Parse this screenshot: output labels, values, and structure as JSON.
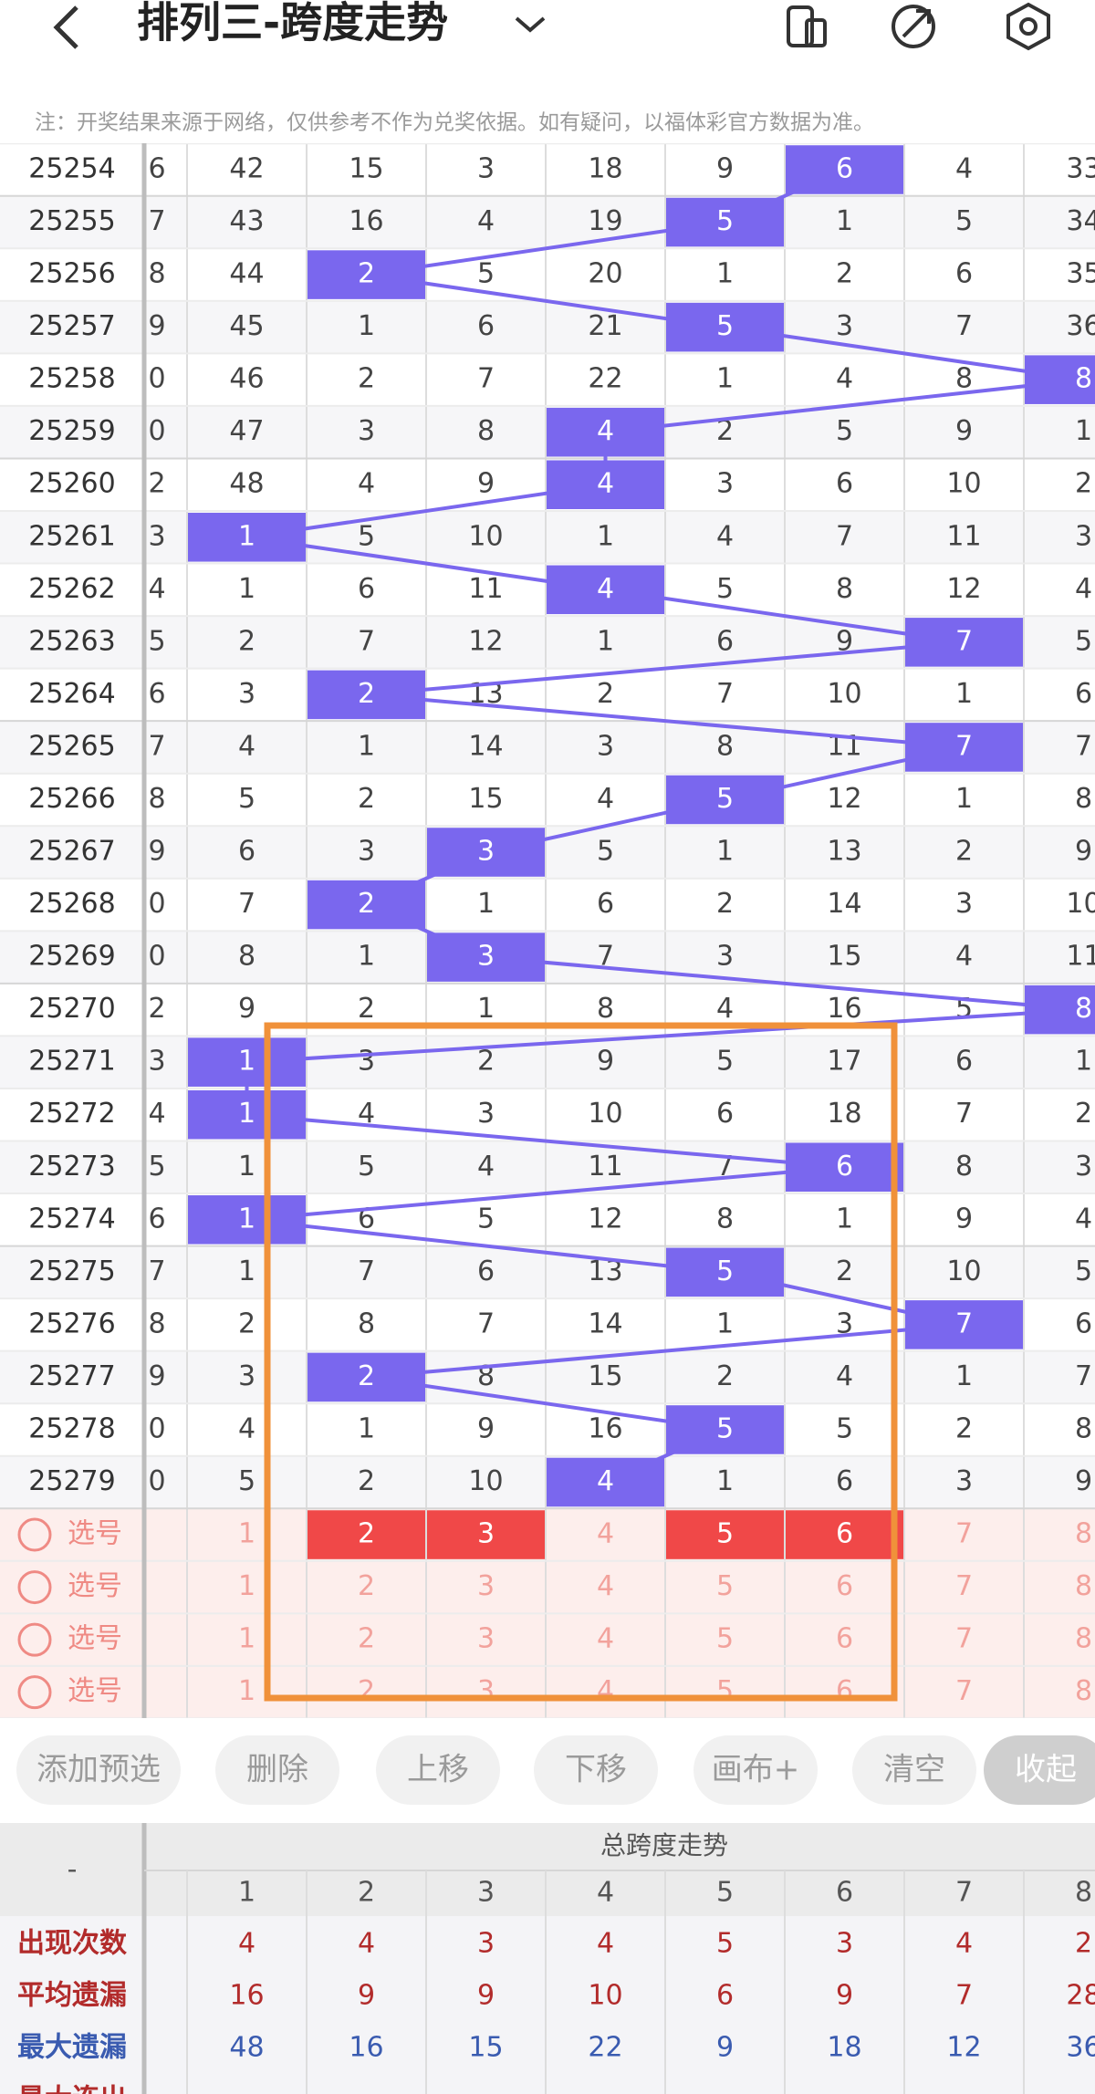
{
  "header": {
    "title": "排列三-跨度走势",
    "notice": "注：开奖结果来源于网络，仅供参考不作为兑奖依据。如有疑问，以福体彩官方数据为准。"
  },
  "table": {
    "rows": [
      {
        "issue": "25254",
        "edge": "6",
        "cells": [
          42,
          15,
          3,
          18,
          9,
          6,
          4,
          33
        ],
        "hit": 5
      },
      {
        "issue": "25255",
        "edge": "7",
        "cells": [
          43,
          16,
          4,
          19,
          5,
          1,
          5,
          34
        ],
        "hit": 4
      },
      {
        "issue": "25256",
        "edge": "8",
        "cells": [
          44,
          2,
          5,
          20,
          1,
          2,
          6,
          35
        ],
        "hit": 1
      },
      {
        "issue": "25257",
        "edge": "9",
        "cells": [
          45,
          1,
          6,
          21,
          5,
          3,
          7,
          36
        ],
        "hit": 4
      },
      {
        "issue": "25258",
        "edge": "0",
        "cells": [
          46,
          2,
          7,
          22,
          1,
          4,
          8,
          8
        ],
        "hit": 7
      },
      {
        "issue": "25259",
        "edge": "0",
        "cells": [
          47,
          3,
          8,
          4,
          2,
          5,
          9,
          1
        ],
        "hit": 3
      },
      {
        "issue": "25260",
        "edge": "2",
        "cells": [
          48,
          4,
          9,
          4,
          3,
          6,
          10,
          2
        ],
        "hit": 3
      },
      {
        "issue": "25261",
        "edge": "3",
        "cells": [
          1,
          5,
          10,
          1,
          4,
          7,
          11,
          3
        ],
        "hit": 0
      },
      {
        "issue": "25262",
        "edge": "4",
        "cells": [
          1,
          6,
          11,
          4,
          5,
          8,
          12,
          4
        ],
        "hit": 3
      },
      {
        "issue": "25263",
        "edge": "5",
        "cells": [
          2,
          7,
          12,
          1,
          6,
          9,
          7,
          5
        ],
        "hit": 6
      },
      {
        "issue": "25264",
        "edge": "6",
        "cells": [
          3,
          2,
          13,
          2,
          7,
          10,
          1,
          6
        ],
        "hit": 1
      },
      {
        "issue": "25265",
        "edge": "7",
        "cells": [
          4,
          1,
          14,
          3,
          8,
          11,
          7,
          7
        ],
        "hit": 6
      },
      {
        "issue": "25266",
        "edge": "8",
        "cells": [
          5,
          2,
          15,
          4,
          5,
          12,
          1,
          8
        ],
        "hit": 4
      },
      {
        "issue": "25267",
        "edge": "9",
        "cells": [
          6,
          3,
          3,
          5,
          1,
          13,
          2,
          9
        ],
        "hit": 2
      },
      {
        "issue": "25268",
        "edge": "0",
        "cells": [
          7,
          2,
          1,
          6,
          2,
          14,
          3,
          10
        ],
        "hit": 1
      },
      {
        "issue": "25269",
        "edge": "0",
        "cells": [
          8,
          1,
          3,
          7,
          3,
          15,
          4,
          11
        ],
        "hit": 2
      },
      {
        "issue": "25270",
        "edge": "2",
        "cells": [
          9,
          2,
          1,
          8,
          4,
          16,
          5,
          8
        ],
        "hit": 7
      },
      {
        "issue": "25271",
        "edge": "3",
        "cells": [
          1,
          3,
          2,
          9,
          5,
          17,
          6,
          1
        ],
        "hit": 0
      },
      {
        "issue": "25272",
        "edge": "4",
        "cells": [
          1,
          4,
          3,
          10,
          6,
          18,
          7,
          2
        ],
        "hit": 0
      },
      {
        "issue": "25273",
        "edge": "5",
        "cells": [
          1,
          5,
          4,
          11,
          7,
          6,
          8,
          3
        ],
        "hit": 5
      },
      {
        "issue": "25274",
        "edge": "6",
        "cells": [
          1,
          6,
          5,
          12,
          8,
          1,
          9,
          4
        ],
        "hit": 0
      },
      {
        "issue": "25275",
        "edge": "7",
        "cells": [
          1,
          7,
          6,
          13,
          5,
          2,
          10,
          5
        ],
        "hit": 4
      },
      {
        "issue": "25276",
        "edge": "8",
        "cells": [
          2,
          8,
          7,
          14,
          1,
          3,
          7,
          6
        ],
        "hit": 6
      },
      {
        "issue": "25277",
        "edge": "9",
        "cells": [
          3,
          2,
          8,
          15,
          2,
          4,
          1,
          7
        ],
        "hit": 1
      },
      {
        "issue": "25278",
        "edge": "0",
        "cells": [
          4,
          1,
          9,
          16,
          5,
          5,
          2,
          8
        ],
        "hit": 4
      },
      {
        "issue": "25279",
        "edge": "0",
        "cells": [
          5,
          2,
          10,
          4,
          1,
          6,
          3,
          9
        ],
        "hit": 3
      }
    ]
  },
  "selection": {
    "rows": [
      {
        "label": "选号",
        "cells": [
          1,
          2,
          3,
          4,
          5,
          6,
          7,
          8
        ],
        "selected": [
          1,
          2,
          4,
          5
        ]
      },
      {
        "label": "选号",
        "cells": [
          1,
          2,
          3,
          4,
          5,
          6,
          7,
          8
        ],
        "selected": []
      },
      {
        "label": "选号",
        "cells": [
          1,
          2,
          3,
          4,
          5,
          6,
          7,
          8
        ],
        "selected": []
      },
      {
        "label": "选号",
        "cells": [
          1,
          2,
          3,
          4,
          5,
          6,
          7,
          8
        ],
        "selected": []
      }
    ]
  },
  "buttons": [
    "添加预选",
    "删除",
    "上移",
    "下移",
    "画布+",
    "清空",
    "收起"
  ],
  "stats": {
    "corner": "-",
    "title": "总跨度走势",
    "columns": [
      1,
      2,
      3,
      4,
      5,
      6,
      7,
      8
    ],
    "rows": [
      {
        "label": "出现次数",
        "values": [
          4,
          4,
          3,
          4,
          5,
          3,
          4,
          2
        ]
      },
      {
        "label": "平均遗漏",
        "values": [
          16,
          9,
          9,
          10,
          6,
          9,
          7,
          28
        ]
      },
      {
        "label": "最大遗漏",
        "values": [
          48,
          16,
          15,
          22,
          9,
          18,
          12,
          36
        ]
      },
      {
        "label": "最大连出",
        "values": []
      }
    ]
  }
}
